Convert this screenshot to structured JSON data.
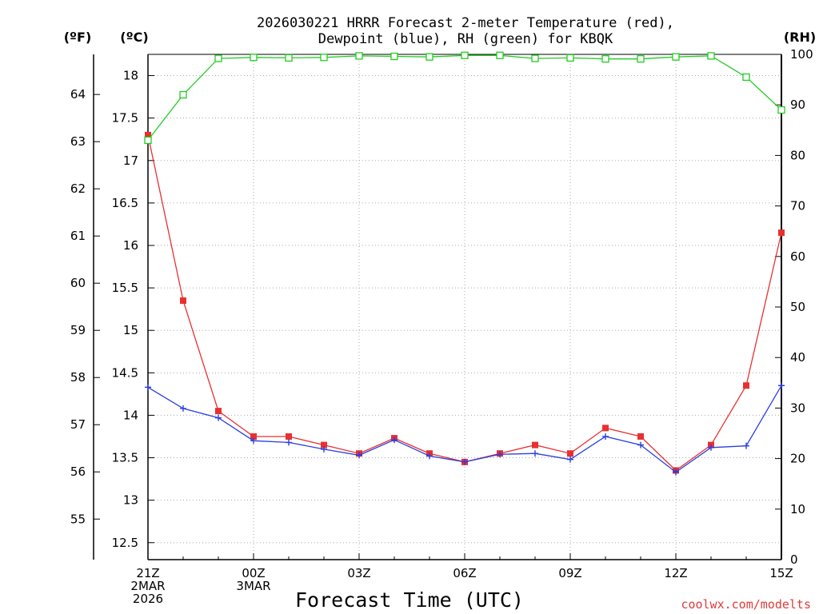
{
  "chart_data": {
    "type": "line",
    "title_line1": "2026030221 HRRR Forecast 2-meter Temperature (red),",
    "title_line2": "Dewpoint (blue), RH (green) for KBQK",
    "xlabel": "Forecast Time (UTC)",
    "credit": "coolwx.com/modelts",
    "unit_f": "(ºF)",
    "unit_c": "(ºC)",
    "unit_rh": "(RH)",
    "x_hours": [
      0,
      1,
      2,
      3,
      4,
      5,
      6,
      7,
      8,
      9,
      10,
      11,
      12,
      13,
      14,
      15,
      16,
      17,
      18
    ],
    "x_ticks": [
      {
        "hour": 0,
        "lines": [
          "21Z",
          "2MAR",
          "2026"
        ]
      },
      {
        "hour": 3,
        "lines": [
          "00Z",
          "3MAR"
        ]
      },
      {
        "hour": 6,
        "lines": [
          "03Z"
        ]
      },
      {
        "hour": 9,
        "lines": [
          "06Z"
        ]
      },
      {
        "hour": 12,
        "lines": [
          "09Z"
        ]
      },
      {
        "hour": 15,
        "lines": [
          "12Z"
        ]
      },
      {
        "hour": 18,
        "lines": [
          "15Z"
        ]
      }
    ],
    "celsius_axis": {
      "range": [
        12.3,
        18.25
      ],
      "ticks": [
        "12.5",
        "13",
        "13.5",
        "14",
        "14.5",
        "15",
        "15.5",
        "16",
        "16.5",
        "17",
        "17.5",
        "18"
      ]
    },
    "fahrenheit_axis": {
      "ticks": [
        "55",
        "56",
        "57",
        "58",
        "59",
        "60",
        "61",
        "62",
        "63",
        "64"
      ]
    },
    "rh_axis": {
      "range": [
        0,
        100
      ],
      "ticks": [
        "0",
        "10",
        "20",
        "30",
        "40",
        "50",
        "60",
        "70",
        "80",
        "90",
        "100"
      ]
    },
    "series": [
      {
        "name": "Temperature",
        "color": "#e83030",
        "marker": "square-filled",
        "values_c": [
          17.3,
          15.35,
          14.05,
          13.75,
          13.75,
          13.65,
          13.55,
          13.73,
          13.55,
          13.45,
          13.55,
          13.65,
          13.55,
          13.85,
          13.75,
          13.35,
          13.65,
          14.35,
          16.15
        ]
      },
      {
        "name": "Dewpoint",
        "color": "#2a3fe0",
        "marker": "plus",
        "values_c": [
          14.33,
          14.08,
          13.97,
          13.7,
          13.68,
          13.6,
          13.53,
          13.71,
          13.52,
          13.45,
          13.54,
          13.55,
          13.48,
          13.75,
          13.65,
          13.33,
          13.62,
          13.64,
          14.35
        ]
      },
      {
        "name": "RH",
        "color": "#22cc22",
        "marker": "square-open",
        "values_rh": [
          83,
          92,
          99.2,
          99.4,
          99.3,
          99.4,
          99.7,
          99.6,
          99.5,
          99.8,
          99.8,
          99.2,
          99.3,
          99.1,
          99.1,
          99.5,
          99.7,
          95.5,
          89
        ]
      }
    ]
  }
}
